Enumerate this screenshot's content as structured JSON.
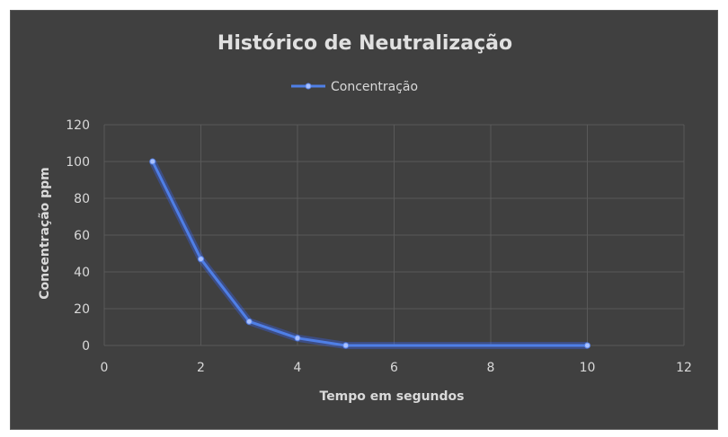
{
  "chart_data": {
    "type": "scatter",
    "title": "Histórico de Neutralização",
    "xlabel": "Tempo em segundos",
    "ylabel": "Concentração ppm",
    "xlim": [
      0,
      12
    ],
    "ylim": [
      0,
      120
    ],
    "xticks": [
      "0",
      "2",
      "4",
      "6",
      "8",
      "10",
      "12"
    ],
    "yticks": [
      "0",
      "20",
      "40",
      "60",
      "80",
      "100",
      "120"
    ],
    "grid": true,
    "legend_position": "top",
    "series": [
      {
        "name": "Concentração",
        "color": "#4f7fe6",
        "x": [
          1,
          2,
          3,
          4,
          5,
          10
        ],
        "y": [
          100,
          47,
          13,
          4,
          0,
          0
        ]
      }
    ]
  }
}
